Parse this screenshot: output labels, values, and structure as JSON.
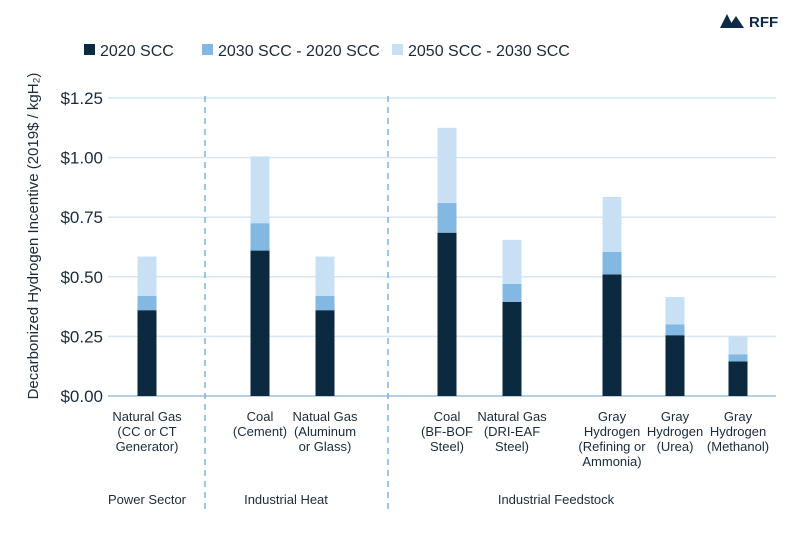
{
  "logo": {
    "text": "RFF"
  },
  "chart_data": {
    "type": "bar",
    "stacked": true,
    "ylabel": "Decarbonized Hydrogen Incentive (2019$ / kgH₂)",
    "ylim": [
      0,
      1.25
    ],
    "yticks": [
      {
        "value": 0,
        "label": "$0.00"
      },
      {
        "value": 0.25,
        "label": "$0.25"
      },
      {
        "value": 0.5,
        "label": "$0.50"
      },
      {
        "value": 0.75,
        "label": "$0.75"
      },
      {
        "value": 1.0,
        "label": "$1.00"
      },
      {
        "value": 1.25,
        "label": "$1.25"
      }
    ],
    "grid": true,
    "legend_position": "top-left",
    "colors": {
      "series_2020": "#0c2a3f",
      "series_2030": "#82b8e2",
      "series_2050": "#c7e0f4",
      "grid": "#d6e6f2",
      "divider": "#7fb3da"
    },
    "categories": [
      {
        "lines": [
          "Natural Gas",
          "(CC or CT",
          "Generator)"
        ]
      },
      {
        "lines": [
          "Coal",
          "(Cement)"
        ]
      },
      {
        "lines": [
          "Natual Gas",
          "(Aluminum",
          "or Glass)"
        ]
      },
      {
        "lines": [
          "Coal",
          "(BF-BOF",
          "Steel)"
        ]
      },
      {
        "lines": [
          "Natural Gas",
          "(DRI-EAF",
          "Steel)"
        ]
      },
      {
        "lines": [
          "Gray",
          "Hydrogen",
          "(Refining or",
          "Ammonia)"
        ]
      },
      {
        "lines": [
          "Gray",
          "Hydrogen",
          "(Urea)"
        ]
      },
      {
        "lines": [
          "Gray",
          "Hydrogen",
          "(Methanol)"
        ]
      }
    ],
    "series": [
      {
        "name": "2020 SCC",
        "values": [
          0.36,
          0.61,
          0.36,
          0.685,
          0.395,
          0.51,
          0.255,
          0.145
        ]
      },
      {
        "name": "2030 SCC - 2020 SCC",
        "values": [
          0.06,
          0.115,
          0.06,
          0.125,
          0.075,
          0.095,
          0.045,
          0.03
        ]
      },
      {
        "name": "2050 SCC - 2030 SCC",
        "values": [
          0.165,
          0.28,
          0.165,
          0.315,
          0.185,
          0.23,
          0.115,
          0.075
        ]
      }
    ],
    "sectors": [
      {
        "label": "Power Sector"
      },
      {
        "label": "Industrial Heat"
      },
      {
        "label": "Industrial Feedstock"
      }
    ]
  }
}
